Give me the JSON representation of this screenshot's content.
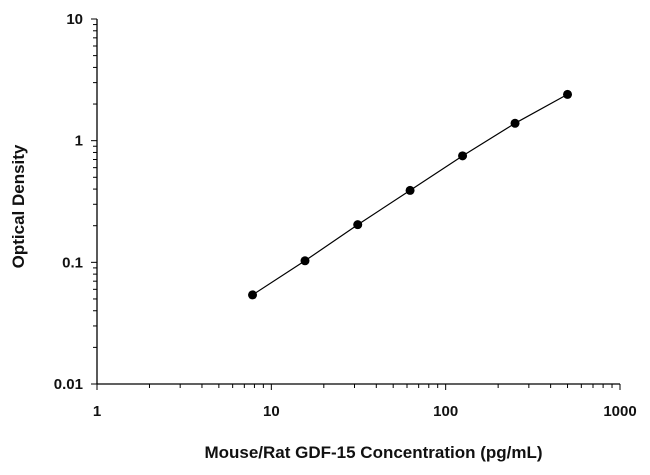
{
  "chart_data": {
    "type": "scatter",
    "title": "",
    "xlabel": "Mouse/Rat GDF-15 Concentration (pg/mL)",
    "ylabel": "Optical Density",
    "x_scale": "log",
    "y_scale": "log",
    "xlim": [
      1,
      1000
    ],
    "ylim": [
      0.01,
      10
    ],
    "x_ticks": [
      "1",
      "10",
      "100",
      "1000"
    ],
    "y_ticks": [
      "0.01",
      "0.1",
      "1",
      "10"
    ],
    "grid": false,
    "legend": "none",
    "series": [
      {
        "x": [
          7.8,
          15.6,
          31.3,
          62.5,
          125,
          250,
          500
        ],
        "y": [
          0.054,
          0.103,
          0.204,
          0.39,
          0.75,
          1.39,
          2.4
        ],
        "marker": "circle",
        "color": "#000000",
        "line": true
      }
    ]
  }
}
